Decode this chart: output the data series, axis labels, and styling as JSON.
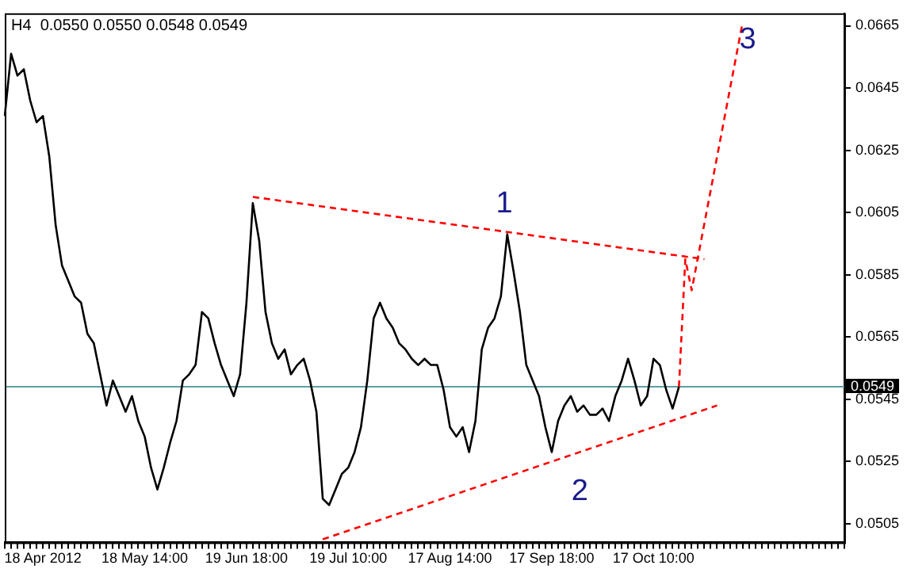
{
  "chart_data": {
    "type": "line",
    "title": "H4  0.0550 0.0550 0.0548 0.0549",
    "categories": [
      null,
      null,
      null,
      null,
      null,
      null,
      "18 Apr 2012",
      null,
      null,
      null,
      null,
      null,
      null,
      null,
      null,
      null,
      null,
      null,
      null,
      null,
      null,
      null,
      "18 May 14:00",
      null,
      null,
      null,
      null,
      null,
      null,
      null,
      null,
      null,
      null,
      null,
      null,
      null,
      null,
      null,
      "19 Jun 18:00",
      null,
      null,
      null,
      null,
      null,
      null,
      null,
      null,
      null,
      null,
      null,
      null,
      null,
      null,
      null,
      "19 Jul 10:00",
      null,
      null,
      null,
      null,
      null,
      null,
      null,
      null,
      null,
      null,
      null,
      null,
      null,
      null,
      null,
      "17 Aug 14:00",
      null,
      null,
      null,
      null,
      null,
      null,
      null,
      null,
      null,
      null,
      null,
      null,
      null,
      null,
      null,
      "17 Sep 18:00",
      null,
      null,
      null,
      null,
      null,
      null,
      null,
      null,
      null,
      null,
      null,
      null,
      null,
      null,
      null,
      "17 Oct 10:00",
      null,
      null,
      null,
      null,
      null,
      null,
      null,
      null,
      null,
      null,
      null,
      null,
      null,
      null,
      null,
      null,
      null,
      null,
      null,
      null,
      null,
      null,
      null,
      null,
      null,
      null,
      null,
      null,
      null,
      null
    ],
    "series": [
      {
        "color": "#000000",
        "line_style": "solid",
        "values": [
          0.0636,
          0.0656,
          0.0649,
          0.0651,
          0.0641,
          0.0634,
          0.0636,
          0.0623,
          0.0601,
          0.0588,
          0.0583,
          0.0578,
          0.0576,
          0.0566,
          0.0563,
          0.0553,
          0.0543,
          0.0551,
          0.0546,
          0.0541,
          0.0546,
          0.0538,
          0.0533,
          0.0523,
          0.0516,
          0.0523,
          0.0531,
          0.0538,
          0.0551,
          0.0553,
          0.0556,
          0.0573,
          0.0571,
          0.0563,
          0.0556,
          0.0551,
          0.0546,
          0.0553,
          0.0576,
          0.0608,
          0.0596,
          0.0573,
          0.0563,
          0.0558,
          0.0561,
          0.0553,
          0.0556,
          0.0558,
          0.0551,
          0.0541,
          0.0513,
          0.0511,
          0.0516,
          0.0521,
          0.0523,
          0.0528,
          0.0536,
          0.0551,
          0.0571,
          0.0576,
          0.0571,
          0.0568,
          0.0563,
          0.0561,
          0.0558,
          0.0556,
          0.0558,
          0.0556,
          0.0556,
          0.0548,
          0.0536,
          0.0533,
          0.0536,
          0.0528,
          0.0538,
          0.0561,
          0.0568,
          0.0571,
          0.0578,
          0.0598,
          0.0586,
          0.0573,
          0.0556,
          0.0551,
          0.0546,
          0.0536,
          0.0528,
          0.0538,
          0.0543,
          0.0546,
          0.0541,
          0.0543,
          0.054,
          0.054,
          0.0542,
          0.0538,
          0.0546,
          0.0551,
          0.0558,
          0.0551,
          0.0543,
          0.0546,
          0.0558,
          0.0556,
          0.0548,
          0.0542,
          0.0549,
          null,
          null,
          null,
          null,
          null,
          null,
          null,
          null,
          null,
          null,
          null,
          null,
          null,
          null,
          null,
          null,
          null,
          null,
          null,
          null,
          null,
          null,
          null,
          null,
          null,
          null
        ]
      },
      {
        "color": "#ff0000",
        "line_style": "dashed",
        "values": [
          null,
          null,
          null,
          null,
          null,
          null,
          null,
          null,
          null,
          null,
          null,
          null,
          null,
          null,
          null,
          null,
          null,
          null,
          null,
          null,
          null,
          null,
          null,
          null,
          null,
          null,
          null,
          null,
          null,
          null,
          null,
          null,
          null,
          null,
          null,
          null,
          null,
          null,
          null,
          0.061,
          null,
          null,
          null,
          null,
          null,
          null,
          null,
          null,
          null,
          null,
          null,
          null,
          null,
          null,
          null,
          null,
          null,
          null,
          null,
          null,
          null,
          null,
          null,
          null,
          null,
          null,
          null,
          null,
          null,
          null,
          null,
          null,
          null,
          null,
          null,
          null,
          null,
          null,
          null,
          null,
          null,
          null,
          null,
          null,
          null,
          null,
          null,
          null,
          null,
          null,
          null,
          null,
          null,
          null,
          null,
          null,
          null,
          null,
          null,
          null,
          null,
          null,
          null,
          null,
          null,
          null,
          null,
          null,
          null,
          null,
          0.059,
          null,
          null,
          null,
          null,
          null,
          null,
          null,
          null,
          null,
          null,
          null,
          null,
          null,
          null,
          null,
          null,
          null,
          null,
          null,
          null,
          null,
          null
        ]
      },
      {
        "color": "#ff0000",
        "line_style": "dashed",
        "values": [
          null,
          null,
          null,
          null,
          null,
          null,
          null,
          null,
          null,
          null,
          null,
          null,
          null,
          null,
          null,
          null,
          null,
          null,
          null,
          null,
          null,
          null,
          null,
          null,
          null,
          null,
          null,
          null,
          null,
          null,
          null,
          null,
          null,
          null,
          null,
          null,
          null,
          null,
          null,
          null,
          null,
          null,
          null,
          null,
          null,
          null,
          null,
          null,
          null,
          null,
          0.05,
          null,
          null,
          null,
          null,
          null,
          null,
          null,
          null,
          null,
          null,
          null,
          null,
          null,
          null,
          null,
          null,
          null,
          null,
          null,
          null,
          null,
          null,
          null,
          null,
          null,
          null,
          null,
          null,
          null,
          null,
          null,
          null,
          null,
          null,
          null,
          null,
          null,
          null,
          null,
          null,
          null,
          null,
          null,
          null,
          null,
          null,
          null,
          null,
          null,
          null,
          null,
          null,
          null,
          null,
          null,
          null,
          null,
          null,
          null,
          null,
          null,
          0.0543,
          null,
          null,
          null,
          null,
          null,
          null,
          null,
          null,
          null,
          null,
          null,
          null,
          null,
          null,
          null,
          null,
          null,
          null,
          null,
          null
        ]
      },
      {
        "color": "#ff0000",
        "line_style": "dashed",
        "values": [
          null,
          null,
          null,
          null,
          null,
          null,
          null,
          null,
          null,
          null,
          null,
          null,
          null,
          null,
          null,
          null,
          null,
          null,
          null,
          null,
          null,
          null,
          null,
          null,
          null,
          null,
          null,
          null,
          null,
          null,
          null,
          null,
          null,
          null,
          null,
          null,
          null,
          null,
          null,
          null,
          null,
          null,
          null,
          null,
          null,
          null,
          null,
          null,
          null,
          null,
          null,
          null,
          null,
          null,
          null,
          null,
          null,
          null,
          null,
          null,
          null,
          null,
          null,
          null,
          null,
          null,
          null,
          null,
          null,
          null,
          null,
          null,
          null,
          null,
          null,
          null,
          null,
          null,
          null,
          null,
          null,
          null,
          null,
          null,
          null,
          null,
          null,
          null,
          null,
          null,
          null,
          null,
          null,
          null,
          null,
          null,
          null,
          null,
          null,
          null,
          null,
          null,
          null,
          null,
          null,
          null,
          0.0549,
          0.059,
          0.058,
          null,
          null,
          null,
          null,
          null,
          null,
          null,
          0.0666,
          null,
          null,
          null,
          null,
          null,
          null,
          null,
          null,
          null,
          null,
          null,
          null,
          null,
          null,
          null,
          null
        ]
      }
    ],
    "ylim": [
      0.0499,
      0.0669
    ],
    "yticks": [
      0.0505,
      0.0525,
      0.0545,
      0.0565,
      0.0585,
      0.0605,
      0.0625,
      0.0645,
      0.0665
    ],
    "ref_lines": [
      {
        "axis": "y",
        "value": 0.0549,
        "label": "0.0549",
        "color": "#5f9ea0"
      }
    ],
    "annotations": [
      "1",
      "2",
      "3"
    ],
    "grid": false,
    "legend": false,
    "marker": "none"
  }
}
